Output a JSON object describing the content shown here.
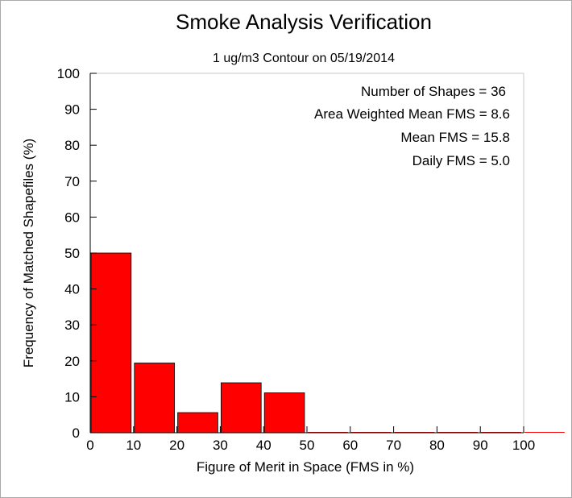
{
  "chart_data": {
    "type": "bar",
    "title": "Smoke Analysis Verification",
    "subtitle": "1 ug/m3 Contour on 05/19/2014",
    "xlabel": "Figure of Merit in Space (FMS in %)",
    "ylabel": "Frequency of Matched Shapefiles (%)",
    "xlim": [
      0,
      100
    ],
    "ylim": [
      0,
      100
    ],
    "xticks": [
      "0",
      "10",
      "20",
      "30",
      "40",
      "50",
      "60",
      "70",
      "80",
      "90",
      "100"
    ],
    "yticks": [
      "0",
      "10",
      "20",
      "30",
      "40",
      "50",
      "60",
      "70",
      "80",
      "90",
      "100"
    ],
    "bins": [
      {
        "x0": 0,
        "x1": 10,
        "value": 50.0
      },
      {
        "x0": 10,
        "x1": 20,
        "value": 19.4
      },
      {
        "x0": 20,
        "x1": 30,
        "value": 5.6
      },
      {
        "x0": 30,
        "x1": 40,
        "value": 13.9
      },
      {
        "x0": 40,
        "x1": 50,
        "value": 11.1
      },
      {
        "x0": 50,
        "x1": 60,
        "value": 0
      },
      {
        "x0": 60,
        "x1": 70,
        "value": 0
      },
      {
        "x0": 70,
        "x1": 80,
        "value": 0
      },
      {
        "x0": 80,
        "x1": 90,
        "value": 0
      },
      {
        "x0": 90,
        "x1": 100,
        "value": 0
      },
      {
        "x0": 100,
        "x1": 110,
        "value": 0
      }
    ],
    "bar_color": "#ff0000",
    "grid": false,
    "annotations": [
      "Number of Shapes = 36",
      "Area Weighted Mean FMS = 8.6",
      "Mean FMS = 15.8",
      "Daily FMS = 5.0"
    ],
    "annotation_position": "top-right"
  }
}
